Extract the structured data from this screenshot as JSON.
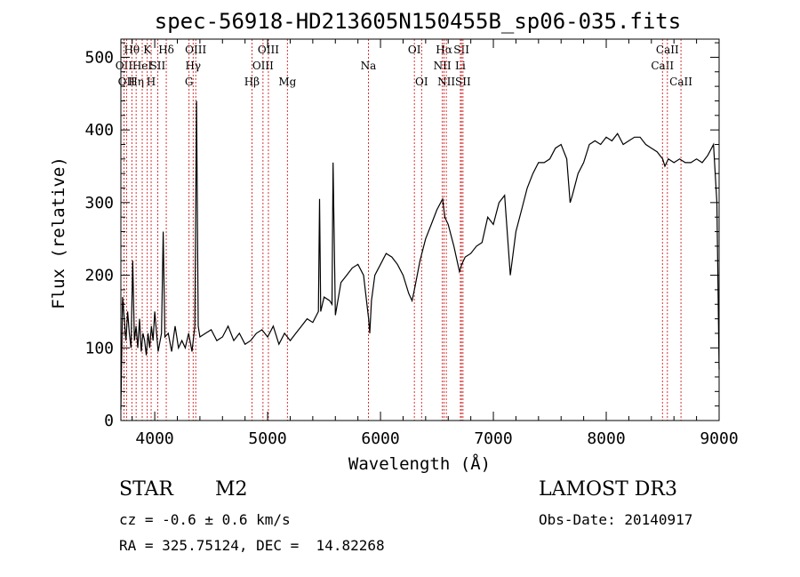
{
  "chart_data": {
    "type": "line",
    "title": "spec-56918-HD213605N150455B_sp06-035.fits",
    "xlabel": "Wavelength (Å)",
    "ylabel": "Flux (relative)",
    "xlim": [
      3700,
      9000
    ],
    "ylim": [
      0,
      525
    ],
    "xticks": [
      4000,
      5000,
      6000,
      7000,
      8000,
      9000
    ],
    "yticks": [
      0,
      100,
      200,
      300,
      400,
      500
    ],
    "line_color": "#000000",
    "marker_color": "#cc0000",
    "series": [
      {
        "x": [
          3700,
          3715,
          3730,
          3745,
          3760,
          3775,
          3790,
          3805,
          3820,
          3835,
          3850,
          3865,
          3880,
          3895,
          3910,
          3925,
          3940,
          3955,
          3970,
          3985,
          4000,
          4030,
          4060,
          4075,
          4090,
          4120,
          4150,
          4180,
          4210,
          4240,
          4270,
          4300,
          4330,
          4355,
          4370,
          4385,
          4400,
          4450,
          4500,
          4550,
          4600,
          4650,
          4700,
          4750,
          4800,
          4850,
          4900,
          4950,
          5000,
          5050,
          5100,
          5150,
          5200,
          5250,
          5300,
          5350,
          5400,
          5450,
          5460,
          5470,
          5500,
          5550,
          5570,
          5580,
          5600,
          5650,
          5700,
          5750,
          5800,
          5850,
          5895,
          5905,
          5920,
          5950,
          6000,
          6050,
          6100,
          6150,
          6200,
          6250,
          6280,
          6300,
          6350,
          6400,
          6450,
          6500,
          6550,
          6570,
          6600,
          6650,
          6700,
          6720,
          6750,
          6800,
          6850,
          6900,
          6950,
          7000,
          7050,
          7100,
          7150,
          7200,
          7250,
          7300,
          7350,
          7400,
          7450,
          7500,
          7550,
          7600,
          7650,
          7680,
          7700,
          7750,
          7800,
          7850,
          7900,
          7950,
          8000,
          8050,
          8100,
          8150,
          8200,
          8250,
          8300,
          8350,
          8400,
          8450,
          8500,
          8520,
          8550,
          8600,
          8650,
          8700,
          8750,
          8800,
          8850,
          8900,
          8950,
          8980,
          9000
        ],
        "y": [
          15,
          170,
          140,
          110,
          150,
          120,
          100,
          220,
          110,
          130,
          100,
          140,
          95,
          120,
          110,
          90,
          120,
          100,
          130,
          110,
          150,
          95,
          120,
          260,
          115,
          120,
          95,
          130,
          100,
          110,
          100,
          120,
          95,
          130,
          440,
          130,
          115,
          120,
          125,
          110,
          115,
          130,
          110,
          120,
          105,
          110,
          120,
          125,
          115,
          130,
          105,
          120,
          110,
          120,
          130,
          140,
          135,
          150,
          305,
          150,
          170,
          165,
          160,
          355,
          145,
          190,
          200,
          210,
          215,
          200,
          140,
          120,
          165,
          200,
          215,
          230,
          225,
          215,
          200,
          175,
          165,
          180,
          220,
          250,
          270,
          290,
          305,
          280,
          270,
          240,
          205,
          215,
          225,
          230,
          240,
          245,
          280,
          270,
          300,
          310,
          200,
          260,
          290,
          320,
          340,
          355,
          355,
          360,
          375,
          380,
          360,
          300,
          310,
          340,
          355,
          380,
          385,
          380,
          390,
          385,
          395,
          380,
          385,
          390,
          390,
          380,
          375,
          370,
          360,
          350,
          360,
          355,
          360,
          355,
          355,
          360,
          355,
          365,
          380,
          300,
          70
        ]
      }
    ],
    "line_markers": [
      {
        "wavelength": 3727,
        "labels": [
          "OII"
        ],
        "row": 1
      },
      {
        "wavelength": 3750,
        "labels": [
          "OII"
        ],
        "row": 2
      },
      {
        "wavelength": 3797,
        "labels": [
          "Hθ"
        ],
        "row": 0
      },
      {
        "wavelength": 3835,
        "labels": [
          "Hη"
        ],
        "row": 2
      },
      {
        "wavelength": 3889,
        "labels": [
          "HeI"
        ],
        "row": 1
      },
      {
        "wavelength": 3934,
        "labels": [
          "K"
        ],
        "row": 0
      },
      {
        "wavelength": 3968,
        "labels": [
          "H"
        ],
        "row": 2
      },
      {
        "wavelength": 4026,
        "labels": [
          "SII"
        ],
        "row": 1
      },
      {
        "wavelength": 4102,
        "labels": [
          "Hδ"
        ],
        "row": 0
      },
      {
        "wavelength": 4304,
        "labels": [
          "G"
        ],
        "row": 2
      },
      {
        "wavelength": 4340,
        "labels": [
          "Hγ"
        ],
        "row": 1
      },
      {
        "wavelength": 4363,
        "labels": [
          "OIII"
        ],
        "row": 0
      },
      {
        "wavelength": 4861,
        "labels": [
          "Hβ"
        ],
        "row": 2
      },
      {
        "wavelength": 4959,
        "labels": [
          "OIII"
        ],
        "row": 1
      },
      {
        "wavelength": 5007,
        "labels": [
          "OIII"
        ],
        "row": 0
      },
      {
        "wavelength": 5175,
        "labels": [
          "Mg"
        ],
        "row": 2
      },
      {
        "wavelength": 5893,
        "labels": [
          "Na"
        ],
        "row": 1
      },
      {
        "wavelength": 6300,
        "labels": [
          "OI"
        ],
        "row": 0
      },
      {
        "wavelength": 6364,
        "labels": [
          "OI"
        ],
        "row": 2
      },
      {
        "wavelength": 6548,
        "labels": [
          "NII"
        ],
        "row": 1
      },
      {
        "wavelength": 6563,
        "labels": [
          "Hα"
        ],
        "row": 0
      },
      {
        "wavelength": 6583,
        "labels": [
          "NII"
        ],
        "row": 2
      },
      {
        "wavelength": 6708,
        "labels": [
          "Li"
        ],
        "row": 1
      },
      {
        "wavelength": 6717,
        "labels": [
          "SII"
        ],
        "row": 0
      },
      {
        "wavelength": 6731,
        "labels": [
          "SII"
        ],
        "row": 2
      },
      {
        "wavelength": 8498,
        "labels": [
          "CaII"
        ],
        "row": 1
      },
      {
        "wavelength": 8542,
        "labels": [
          "CaII"
        ],
        "row": 0
      },
      {
        "wavelength": 8662,
        "labels": [
          "CaII"
        ],
        "row": 2
      }
    ]
  },
  "info": {
    "class": "STAR",
    "subclass": "M2",
    "survey": "LAMOST DR3",
    "cz": "cz = -0.6 ± 0.6 km/s",
    "obs_date": "Obs-Date: 20140917",
    "coords": "RA = 325.75124, DEC =  14.82268"
  }
}
